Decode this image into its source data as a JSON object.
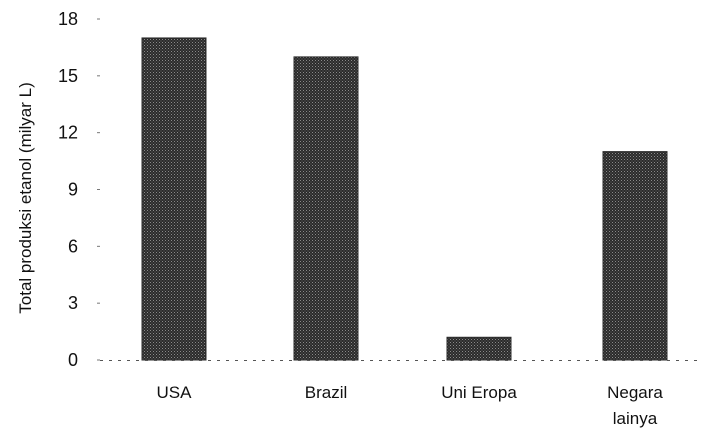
{
  "chart_data": {
    "type": "bar",
    "categories": [
      [
        "USA"
      ],
      [
        "Brazil"
      ],
      [
        "Uni Eropa"
      ],
      [
        "Negara",
        "lainya"
      ]
    ],
    "values": [
      17,
      16,
      1.2,
      11
    ],
    "ylabel": "Total produksi etanol (milyar L)",
    "xlabel": "",
    "ylim": [
      0,
      18
    ],
    "yticks": [
      0,
      3,
      6,
      9,
      12,
      15,
      18
    ],
    "grid": false,
    "legend": "none",
    "bar_color": "#2b2b2b"
  }
}
